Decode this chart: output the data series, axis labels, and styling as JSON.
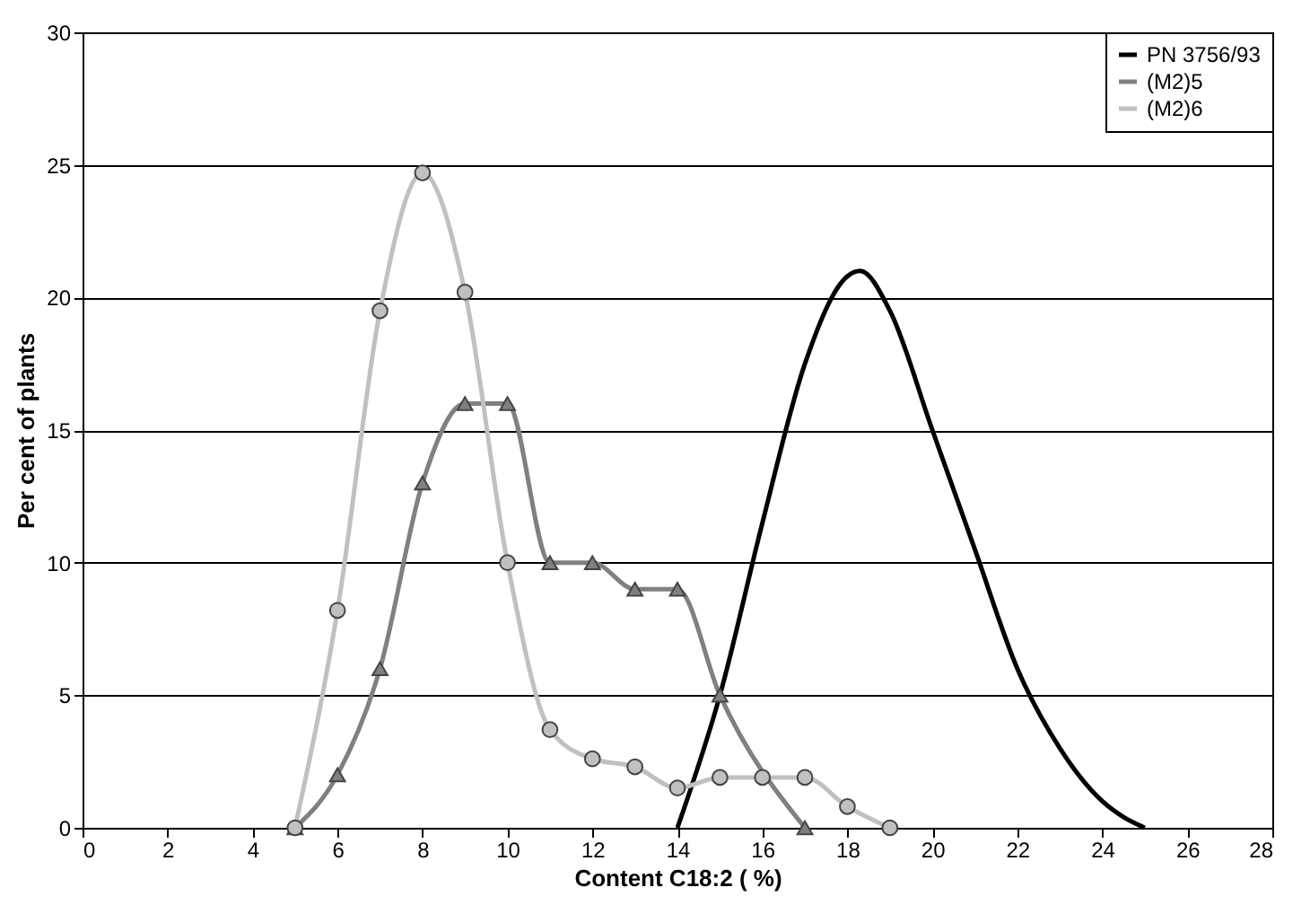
{
  "chart_data": {
    "type": "line",
    "xlabel": "Content C18:2 ( %)",
    "ylabel": "Per cent of plants",
    "xlim": [
      0,
      28
    ],
    "xticks": [
      0,
      2,
      4,
      6,
      8,
      10,
      12,
      14,
      16,
      18,
      20,
      22,
      24,
      26,
      28
    ],
    "ylim": [
      0,
      30
    ],
    "yticks": [
      0,
      5,
      10,
      15,
      20,
      25,
      30
    ],
    "grid": "y",
    "legend": "top right",
    "line_style": "solid",
    "series": [
      {
        "name": "PN 3756/93",
        "color": "#000000",
        "marker": "none",
        "x": [
          14,
          15,
          16,
          17,
          18,
          18.3,
          19,
          20,
          21,
          22,
          23,
          24,
          24.5,
          25
        ],
        "values": [
          0,
          5,
          11.5,
          17.5,
          20.8,
          21,
          19.5,
          15,
          10.5,
          6,
          3,
          1,
          0.4,
          0
        ]
      },
      {
        "name": "(M2)5",
        "color": "#808080",
        "marker": "triangle",
        "x": [
          5,
          6,
          7,
          8,
          9,
          10,
          11,
          12,
          13,
          14,
          15,
          17
        ],
        "values": [
          0,
          2,
          6,
          13,
          16,
          16,
          10,
          10,
          9,
          9,
          5,
          0
        ]
      },
      {
        "name": "(M2)6",
        "color": "#c0c0c0",
        "marker": "circle",
        "x": [
          5,
          6,
          7,
          8,
          9,
          10,
          11,
          12,
          13,
          14,
          15,
          16,
          17,
          18,
          19
        ],
        "values": [
          0,
          8.2,
          19.5,
          24.7,
          20.2,
          10,
          3.7,
          2.6,
          2.3,
          1.5,
          1.9,
          1.9,
          1.9,
          0.8,
          0
        ]
      }
    ]
  }
}
